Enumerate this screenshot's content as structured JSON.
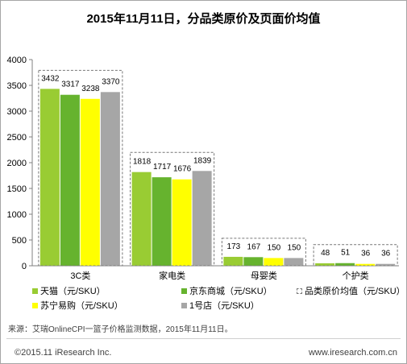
{
  "title": "2015年11月11日，分品类原价及页面价均值",
  "chart_data": {
    "type": "bar",
    "categories": [
      "3C类",
      "家电类",
      "母婴类",
      "个护类"
    ],
    "series": [
      {
        "name": "天猫（元/SKU）",
        "values": [
          3432,
          1818,
          173,
          48
        ],
        "color": "#99cc33"
      },
      {
        "name": "京东商城（元/SKU）",
        "values": [
          3317,
          1717,
          167,
          51
        ],
        "color": "#66b32e"
      },
      {
        "name": "苏宁易购（元/SKU）",
        "values": [
          3238,
          1676,
          150,
          36
        ],
        "color": "#ffff00"
      },
      {
        "name": "1号店（元/SKU）",
        "values": [
          3370,
          1839,
          150,
          36
        ],
        "color": "#a6a6a6"
      }
    ],
    "original_price_avg_label": "品类原价均值（元/SKU）",
    "yticks": [
      0,
      500,
      1000,
      1500,
      2000,
      2500,
      3000,
      3500,
      4000
    ],
    "ylim": [
      0,
      4000
    ],
    "grid": false,
    "legend_position": "bottom"
  },
  "source": "来源：艾瑞OnlineCPI一篮子价格监测数据，2015年11月11日。",
  "footer": {
    "copyright": "©2015.11 iResearch Inc.",
    "website": "www.iresearch.com.cn"
  }
}
